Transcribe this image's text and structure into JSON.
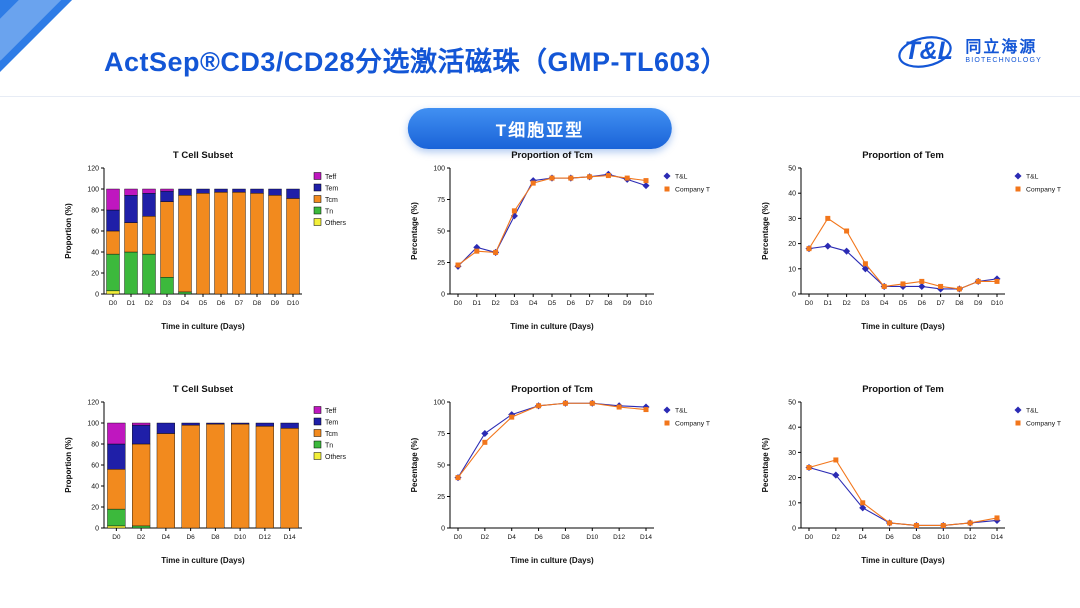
{
  "slide": {
    "title": "ActSep®CD3/CD28分选激活磁珠（GMP-TL603）",
    "badge": "T细胞亚型",
    "colors": {
      "accent": "#1356d6",
      "badge_gradient_top": "#4190f2",
      "badge_gradient_bottom": "#1a63d8",
      "corner_stripe_dark": "#2e7ce6",
      "corner_stripe_light": "#6aa3ee"
    }
  },
  "logo": {
    "mark": "T&L",
    "company_cn": "同立海源",
    "company_en": "BIOTECHNOLOGY"
  },
  "chart_data": [
    {
      "key": "t_cell_subset_d0_d10",
      "type": "bar",
      "stacked": true,
      "title": "T Cell Subset",
      "xlabel": "Time in culture (Days)",
      "ylabel": "Proportion (%)",
      "ylim": [
        0,
        120
      ],
      "yticks": [
        0,
        20,
        40,
        60,
        80,
        100,
        120
      ],
      "categories": [
        "D0",
        "D1",
        "D2",
        "D3",
        "D4",
        "D5",
        "D6",
        "D7",
        "D8",
        "D9",
        "D10"
      ],
      "legend_position": "right",
      "legend_order": [
        "Teff",
        "Tem",
        "Tcm",
        "Tn",
        "Others"
      ],
      "series": [
        {
          "name": "Others",
          "color": "#f2ef3a",
          "values": [
            3,
            0,
            0,
            0,
            0,
            0,
            0,
            0,
            0,
            0,
            0
          ]
        },
        {
          "name": "Tn",
          "color": "#3cb93c",
          "values": [
            35,
            40,
            38,
            16,
            2,
            0,
            0,
            0,
            0,
            0,
            0
          ]
        },
        {
          "name": "Tcm",
          "color": "#f28a1e",
          "values": [
            22,
            28,
            36,
            72,
            92,
            96,
            97,
            97,
            96,
            94,
            91
          ]
        },
        {
          "name": "Tem",
          "color": "#1f1fa8",
          "values": [
            20,
            26,
            22,
            10,
            6,
            4,
            3,
            3,
            4,
            6,
            9
          ]
        },
        {
          "name": "Teff",
          "color": "#bf17bf",
          "values": [
            20,
            6,
            4,
            2,
            0,
            0,
            0,
            0,
            0,
            0,
            0
          ]
        }
      ]
    },
    {
      "key": "tcm_d0_d10",
      "type": "line",
      "title": "Proportion of Tcm",
      "xlabel": "Time in culture (Days)",
      "ylabel": "Percentage (%)",
      "ylim": [
        0,
        100
      ],
      "yticks": [
        0,
        25,
        50,
        75,
        100
      ],
      "categories": [
        "D0",
        "D1",
        "D2",
        "D3",
        "D4",
        "D5",
        "D6",
        "D7",
        "D8",
        "D9",
        "D10"
      ],
      "legend_position": "right",
      "series": [
        {
          "name": "T&L",
          "color": "#2b2bb4",
          "marker": "diamond",
          "values": [
            22,
            37,
            33,
            62,
            90,
            92,
            92,
            93,
            95,
            91,
            86
          ]
        },
        {
          "name": "Company T",
          "color": "#f2761b",
          "marker": "square",
          "values": [
            23,
            34,
            33,
            66,
            88,
            92,
            92,
            93,
            94,
            92,
            90
          ]
        }
      ]
    },
    {
      "key": "tem_d0_d10",
      "type": "line",
      "title": "Proportion of Tem",
      "xlabel": "Time in culture (Days)",
      "ylabel": "Percentage (%)",
      "ylim": [
        0,
        50
      ],
      "yticks": [
        0,
        10,
        20,
        30,
        40,
        50
      ],
      "categories": [
        "D0",
        "D1",
        "D2",
        "D3",
        "D4",
        "D5",
        "D6",
        "D7",
        "D8",
        "D9",
        "D10"
      ],
      "legend_position": "right",
      "series": [
        {
          "name": "T&L",
          "color": "#2b2bb4",
          "marker": "diamond",
          "values": [
            18,
            19,
            17,
            10,
            3,
            3,
            3,
            2,
            2,
            5,
            6
          ]
        },
        {
          "name": "Company T",
          "color": "#f2761b",
          "marker": "square",
          "values": [
            18,
            30,
            25,
            12,
            3,
            4,
            5,
            3,
            2,
            5,
            5
          ]
        }
      ]
    },
    {
      "key": "t_cell_subset_d0_d14",
      "type": "bar",
      "stacked": true,
      "title": "T Cell Subset",
      "xlabel": "Time in culture (Days)",
      "ylabel": "Proportion (%)",
      "ylim": [
        0,
        120
      ],
      "yticks": [
        0,
        20,
        40,
        60,
        80,
        100,
        120
      ],
      "categories": [
        "D0",
        "D2",
        "D4",
        "D6",
        "D8",
        "D10",
        "D12",
        "D14"
      ],
      "legend_position": "right",
      "legend_order": [
        "Teff",
        "Tem",
        "Tcm",
        "Tn",
        "Others"
      ],
      "series": [
        {
          "name": "Others",
          "color": "#f2ef3a",
          "values": [
            2,
            0,
            0,
            0,
            0,
            0,
            0,
            0
          ]
        },
        {
          "name": "Tn",
          "color": "#3cb93c",
          "values": [
            16,
            2,
            0,
            0,
            0,
            0,
            0,
            0
          ]
        },
        {
          "name": "Tcm",
          "color": "#f28a1e",
          "values": [
            38,
            78,
            90,
            98,
            99,
            99,
            97,
            95
          ]
        },
        {
          "name": "Tem",
          "color": "#1f1fa8",
          "values": [
            24,
            18,
            10,
            2,
            1,
            1,
            3,
            5
          ]
        },
        {
          "name": "Teff",
          "color": "#bf17bf",
          "values": [
            20,
            2,
            0,
            0,
            0,
            0,
            0,
            0
          ]
        }
      ]
    },
    {
      "key": "tcm_d0_d14",
      "type": "line",
      "title": "Proportion of Tcm",
      "xlabel": "Time in culture (Days)",
      "ylabel": "Pecentage (%)",
      "ylim": [
        0,
        100
      ],
      "yticks": [
        0,
        25,
        50,
        75,
        100
      ],
      "categories": [
        "D0",
        "D2",
        "D4",
        "D6",
        "D8",
        "D10",
        "D12",
        "D14"
      ],
      "legend_position": "right",
      "series": [
        {
          "name": "T&L",
          "color": "#2b2bb4",
          "marker": "diamond",
          "values": [
            40,
            75,
            90,
            97,
            99,
            99,
            97,
            96
          ]
        },
        {
          "name": "Company T",
          "color": "#f2761b",
          "marker": "square",
          "values": [
            40,
            68,
            88,
            97,
            99,
            99,
            96,
            94
          ]
        }
      ]
    },
    {
      "key": "tem_d0_d14",
      "type": "line",
      "title": "Proportion of Tem",
      "xlabel": "Time in culture (Days)",
      "ylabel": "Pecentage (%)",
      "ylim": [
        0,
        50
      ],
      "yticks": [
        0,
        10,
        20,
        30,
        40,
        50
      ],
      "categories": [
        "D0",
        "D2",
        "D4",
        "D6",
        "D8",
        "D10",
        "D12",
        "D14"
      ],
      "legend_position": "right",
      "series": [
        {
          "name": "T&L",
          "color": "#2b2bb4",
          "marker": "diamond",
          "values": [
            24,
            21,
            8,
            2,
            1,
            1,
            2,
            3
          ]
        },
        {
          "name": "Company T",
          "color": "#f2761b",
          "marker": "square",
          "values": [
            24,
            27,
            10,
            2,
            1,
            1,
            2,
            4
          ]
        }
      ]
    }
  ]
}
